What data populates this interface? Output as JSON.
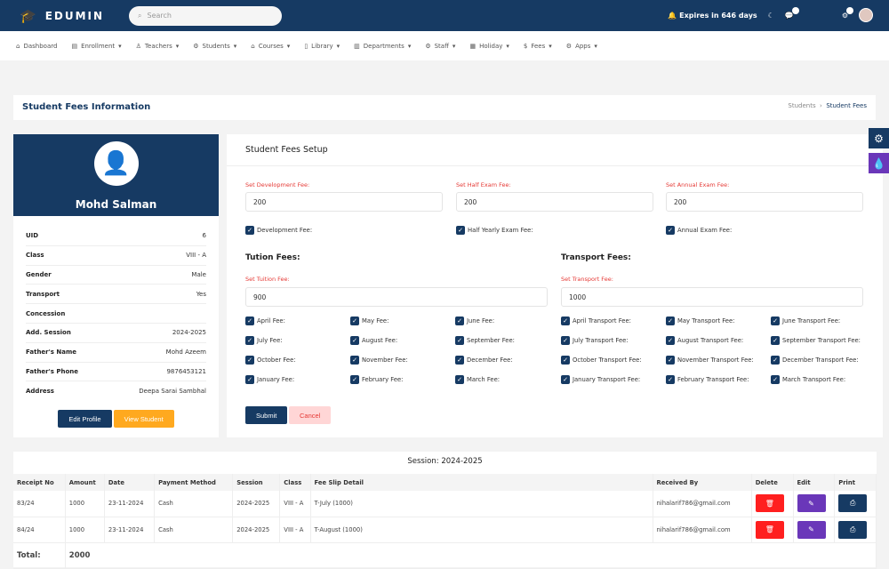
{
  "header": {
    "brand": "EDUMIN",
    "search_placeholder": "Search",
    "expires": "Expires in 646 days"
  },
  "nav": [
    "Dashboard",
    "Enrollment",
    "Teachers",
    "Students",
    "Courses",
    "Library",
    "Departments",
    "Staff",
    "Holiday",
    "Fees",
    "Apps"
  ],
  "page": {
    "title": "Student Fees Information",
    "breadcrumb": [
      "Students",
      "Student Fees"
    ]
  },
  "profile": {
    "name": "Mohd Salman",
    "fields": [
      [
        "UID",
        "6"
      ],
      [
        "Class",
        "VIII - A"
      ],
      [
        "Gender",
        "Male"
      ],
      [
        "Transport",
        "Yes"
      ],
      [
        "Concession",
        ""
      ],
      [
        "Add. Session",
        "2024-2025"
      ],
      [
        "Father's Name",
        "Mohd Azeem"
      ],
      [
        "Father's Phone",
        "9876453121"
      ],
      [
        "Address",
        "Deepa Sarai Sambhal"
      ]
    ],
    "edit": "Edit Profile",
    "view": "View Student"
  },
  "form": {
    "title": "Student Fees Setup",
    "dev_label": "Set Development Fee:",
    "dev_value": "200",
    "half_label": "Set Half Exam Fee:",
    "half_value": "200",
    "annual_label": "Set Annual Exam Fee:",
    "annual_value": "200",
    "checks": [
      "Development Fee:",
      "Half Yearly Exam Fee:",
      "Annual Exam Fee:"
    ],
    "tuition_title": "Tution Fees:",
    "tuition_label": "Set Tuition Fee:",
    "tuition_value": "900",
    "transport_title": "Transport Fees:",
    "transport_label": "Set Transport Fee:",
    "transport_value": "1000",
    "months": [
      [
        "April Fee:",
        "May Fee:",
        "June Fee:",
        "April Transport Fee:",
        "May Transport Fee:",
        "June Transport Fee:"
      ],
      [
        "July Fee:",
        "August Fee:",
        "September Fee:",
        "July Transport Fee:",
        "August Transport Fee:",
        "September Transport Fee:"
      ],
      [
        "October Fee:",
        "November Fee:",
        "December Fee:",
        "October Transport Fee:",
        "November Transport Fee:",
        "December Transport Fee:"
      ],
      [
        "January Fee:",
        "February Fee:",
        "March Fee:",
        "January Transport Fee:",
        "February Transport Fee:",
        "March Transport Fee:"
      ]
    ],
    "submit": "Submit",
    "cancel": "Cancel"
  },
  "table": {
    "session": "Session: 2024-2025",
    "columns": [
      "Receipt No",
      "Amount",
      "Date",
      "Payment Method",
      "Session",
      "Class",
      "Fee Slip Detail",
      "Received By",
      "Delete",
      "Edit",
      "Print"
    ],
    "rows": [
      [
        "83/24",
        "1000",
        "23-11-2024",
        "Cash",
        "2024-2025",
        "VIII - A",
        "T-July (1000)",
        "nihalarif786@gmail.com"
      ],
      [
        "84/24",
        "1000",
        "23-11-2024",
        "Cash",
        "2024-2025",
        "VIII - A",
        "T-August (1000)",
        "nihalarif786@gmail.com"
      ]
    ],
    "total_label": "Total:",
    "total": "2000"
  },
  "colors": {
    "primary": "#163a63",
    "warning": "#ffa91f",
    "danger": "#ff1f1f",
    "edit": "#6a37b9",
    "label": "#e53935"
  }
}
